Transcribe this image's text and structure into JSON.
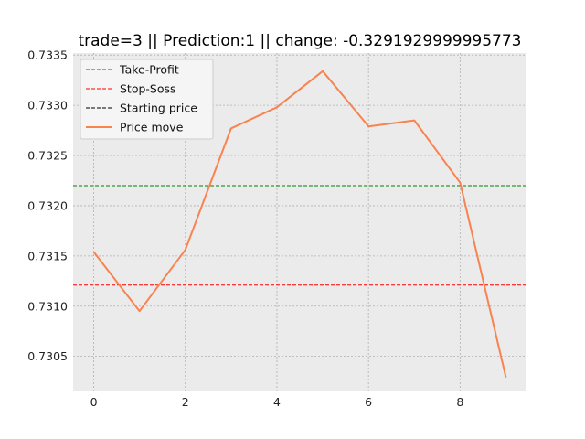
{
  "chart_data": {
    "type": "line",
    "title": "trade=3 || Prediction:1 || change: -0.3291929999995773",
    "xlabel": "",
    "ylabel": "",
    "xlim": [
      -0.45,
      9.45
    ],
    "ylim": [
      0.73016,
      0.73352
    ],
    "x_ticks": [
      0,
      2,
      4,
      6,
      8
    ],
    "y_ticks": [
      0.7305,
      0.731,
      0.7315,
      0.732,
      0.7325,
      0.733,
      0.7335
    ],
    "grid": true,
    "legend_position": "top-left",
    "horizontal_lines": [
      {
        "name": "Take-Profit",
        "y": 0.7322,
        "color": "#008000",
        "style": "dashed"
      },
      {
        "name": "Stop-Soss",
        "y": 0.73121,
        "color": "#ff0000",
        "style": "dashed"
      },
      {
        "name": "Starting price",
        "y": 0.73154,
        "color": "#000000",
        "style": "dashed"
      }
    ],
    "series": [
      {
        "name": "Price move",
        "color": "#f8834f",
        "x": [
          0,
          1,
          2,
          3,
          4,
          5,
          6,
          7,
          8,
          9
        ],
        "values": [
          0.73154,
          0.73095,
          0.73156,
          0.73277,
          0.73298,
          0.73334,
          0.73279,
          0.73285,
          0.73223,
          0.73029
        ]
      }
    ]
  }
}
